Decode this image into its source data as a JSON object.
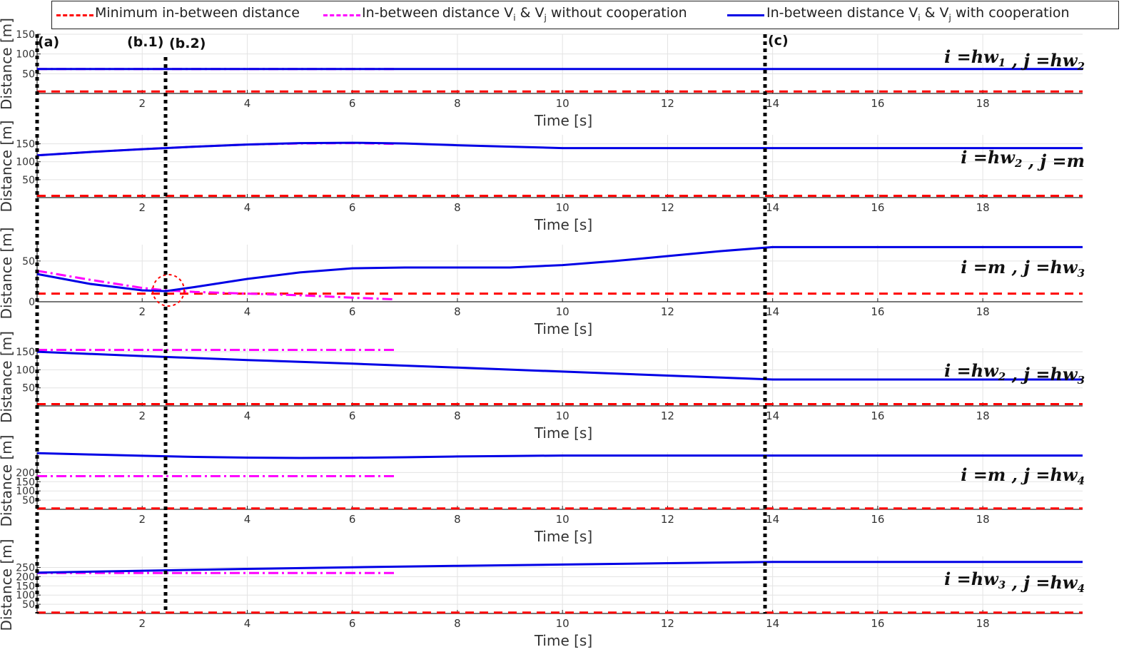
{
  "legend": [
    {
      "id": "min",
      "label": "Minimum in-between distance",
      "color": "#ff0000",
      "style": "dashed"
    },
    {
      "id": "noc",
      "label": "In-between distance V_i & V_j without cooperation",
      "color": "#ff00ff",
      "style": "dashdot"
    },
    {
      "id": "coop",
      "label": "In-between distance V_i & V_j with cooperation",
      "color": "#0000e6",
      "style": "solid"
    }
  ],
  "legend_text": {
    "min": "Minimum in-between distance",
    "noc_prefix": "In-between distance V",
    "noc_mid": " & V",
    "noc_suffix": " without cooperation",
    "coop_prefix": "In-between distance V",
    "coop_mid": " & V",
    "coop_suffix": " with cooperation",
    "sub_i": "i",
    "sub_j": "j"
  },
  "markers": [
    {
      "label": "(a)",
      "x": 0.0
    },
    {
      "label": "(b.1)",
      "x": 2.45
    },
    {
      "label": "(b.2)",
      "x": 2.55
    },
    {
      "label": "(c)",
      "x": 13.9
    }
  ],
  "chart_data": [
    {
      "type": "line",
      "panel_label": {
        "i": "hw",
        "isub": "1",
        "j": "hw",
        "jsub": "2"
      },
      "xlabel": "Time [s]",
      "ylabel": "Distance [m]",
      "xlim": [
        0,
        19.9
      ],
      "ylim": [
        0,
        150
      ],
      "xticks": [
        2,
        4,
        6,
        8,
        10,
        12,
        14,
        16,
        18
      ],
      "yticks": [
        50,
        100,
        150
      ],
      "grid": true,
      "series": [
        {
          "id": "min",
          "x": [
            0,
            19.9
          ],
          "y": [
            5,
            5
          ]
        },
        {
          "id": "noc",
          "x": [
            0,
            6.8
          ],
          "y": [
            62,
            62
          ]
        },
        {
          "id": "coop",
          "x": [
            0,
            19.9
          ],
          "y": [
            62,
            62
          ]
        }
      ]
    },
    {
      "type": "line",
      "panel_label": {
        "i": "hw",
        "isub": "2",
        "j": "m",
        "jsub": ""
      },
      "xlabel": "Time [s]",
      "ylabel": "Distance [m]",
      "xlim": [
        0,
        19.9
      ],
      "ylim": [
        0,
        175
      ],
      "xticks": [
        2,
        4,
        6,
        8,
        10,
        12,
        14,
        16,
        18
      ],
      "yticks": [
        50,
        100,
        150
      ],
      "grid": true,
      "series": [
        {
          "id": "min",
          "x": [
            0,
            19.9
          ],
          "y": [
            5,
            5
          ]
        },
        {
          "id": "noc",
          "x": [
            0,
            1,
            2,
            3,
            4,
            5,
            6,
            6.8
          ],
          "y": [
            118,
            127,
            135,
            142,
            148,
            151,
            152,
            150
          ]
        },
        {
          "id": "coop",
          "x": [
            0,
            1,
            2,
            3,
            4,
            5,
            6,
            7,
            8,
            9,
            10,
            12,
            14,
            16,
            18,
            19.9
          ],
          "y": [
            118,
            127,
            135,
            142,
            148,
            152,
            153,
            151,
            146,
            142,
            138,
            138,
            138,
            138,
            138,
            138
          ]
        }
      ]
    },
    {
      "type": "line",
      "panel_label": {
        "i": "m",
        "isub": "",
        "j": "hw",
        "jsub": "3"
      },
      "xlabel": "Time [s]",
      "ylabel": "Distance [m]",
      "xlim": [
        0,
        19.9
      ],
      "ylim": [
        0,
        70
      ],
      "xticks": [
        2,
        4,
        6,
        8,
        10,
        12,
        14,
        16,
        18
      ],
      "yticks": [
        0,
        50
      ],
      "grid": true,
      "series": [
        {
          "id": "min",
          "x": [
            0,
            19.9
          ],
          "y": [
            10,
            10
          ]
        },
        {
          "id": "noc",
          "x": [
            0,
            1,
            2,
            2.45,
            3,
            4,
            5,
            6,
            6.8
          ],
          "y": [
            38,
            27,
            17,
            14,
            12,
            10,
            8,
            5,
            3
          ]
        },
        {
          "id": "coop",
          "x": [
            0,
            1,
            2,
            2.45,
            3,
            4,
            5,
            6,
            7,
            8,
            9,
            10,
            11,
            12,
            13,
            14,
            16,
            18,
            19.9
          ],
          "y": [
            34,
            22,
            14,
            13,
            18,
            28,
            36,
            41,
            42,
            42,
            42,
            45,
            50,
            56,
            62,
            67,
            67,
            67,
            67
          ]
        }
      ]
    },
    {
      "type": "line",
      "panel_label": {
        "i": "hw",
        "isub": "2",
        "j": "hw",
        "jsub": "3"
      },
      "xlabel": "Time [s]",
      "ylabel": "Distance [m]",
      "xlim": [
        0,
        19.9
      ],
      "ylim": [
        0,
        160
      ],
      "xticks": [
        2,
        4,
        6,
        8,
        10,
        12,
        14,
        16,
        18
      ],
      "yticks": [
        50,
        100,
        150
      ],
      "grid": true,
      "series": [
        {
          "id": "min",
          "x": [
            0,
            19.9
          ],
          "y": [
            5,
            5
          ]
        },
        {
          "id": "noc",
          "x": [
            0,
            6.8
          ],
          "y": [
            155,
            155
          ]
        },
        {
          "id": "coop",
          "x": [
            0,
            2,
            4,
            6,
            8,
            10,
            12,
            14,
            16,
            18,
            19.9
          ],
          "y": [
            150,
            138,
            127,
            117,
            106,
            95,
            84,
            73,
            73,
            73,
            73
          ]
        }
      ]
    },
    {
      "type": "line",
      "panel_label": {
        "i": "m",
        "isub": "",
        "j": "hw",
        "jsub": "4"
      },
      "xlabel": "Time [s]",
      "ylabel": "Distance [m]",
      "xlim": [
        0,
        19.9
      ],
      "ylim": [
        0,
        310
      ],
      "xticks": [
        2,
        4,
        6,
        8,
        10,
        12,
        14,
        16,
        18
      ],
      "yticks": [
        50,
        100,
        150,
        200
      ],
      "grid": true,
      "series": [
        {
          "id": "min",
          "x": [
            0,
            19.9
          ],
          "y": [
            5,
            5
          ]
        },
        {
          "id": "noc",
          "x": [
            0,
            6.8
          ],
          "y": [
            180,
            180
          ]
        },
        {
          "id": "coop",
          "x": [
            0,
            1,
            2,
            3,
            4,
            5,
            6,
            7,
            8,
            9,
            10,
            12,
            14,
            16,
            18,
            19.9
          ],
          "y": [
            305,
            298,
            291,
            285,
            281,
            279,
            280,
            283,
            287,
            290,
            292,
            292,
            292,
            292,
            292,
            292
          ]
        }
      ]
    },
    {
      "type": "line",
      "panel_label": {
        "i": "hw",
        "isub": "3",
        "j": "hw",
        "jsub": "4"
      },
      "xlabel": "Time [s]",
      "ylabel": "Distance [m]",
      "xlim": [
        0,
        19.9
      ],
      "ylim": [
        0,
        310
      ],
      "xticks": [
        2,
        4,
        6,
        8,
        10,
        12,
        14,
        16,
        18
      ],
      "yticks": [
        50,
        100,
        150,
        200,
        250
      ],
      "grid": true,
      "series": [
        {
          "id": "min",
          "x": [
            0,
            19.9
          ],
          "y": [
            5,
            5
          ]
        },
        {
          "id": "noc",
          "x": [
            0,
            6.8
          ],
          "y": [
            220,
            220
          ]
        },
        {
          "id": "coop",
          "x": [
            0,
            2,
            4,
            6,
            8,
            10,
            12,
            14,
            16,
            18,
            19.9
          ],
          "y": [
            222,
            232,
            242,
            251,
            259,
            266,
            273,
            280,
            280,
            280,
            280
          ]
        }
      ]
    }
  ]
}
